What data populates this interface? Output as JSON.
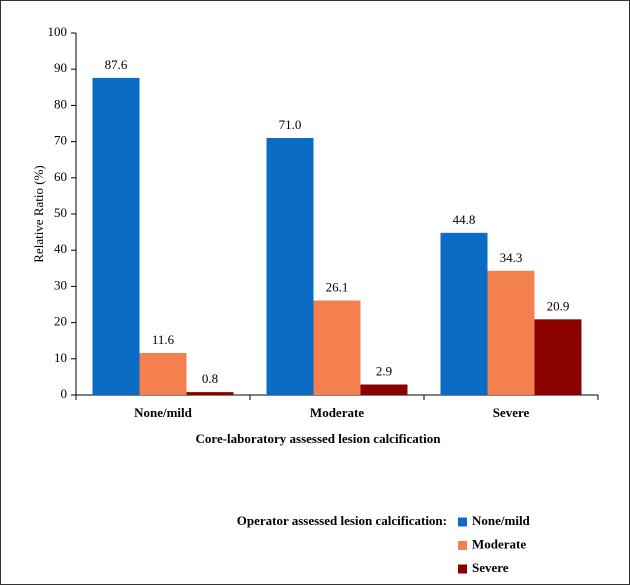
{
  "chart_data": {
    "type": "bar",
    "ylabel": "Relative Ratio (%)",
    "xlabel": "Core-laboratory assessed lesion calcification",
    "legend_title": "Operator assessed lesion calcification:",
    "categories": [
      "None/mild",
      "Moderate",
      "Severe"
    ],
    "series": [
      {
        "name": "None/mild",
        "color": "#0a6cc4",
        "values": [
          87.6,
          71.0,
          44.8
        ],
        "value_labels": [
          "87.6",
          "71.0",
          "44.8"
        ]
      },
      {
        "name": "Moderate",
        "color": "#f4804f",
        "values": [
          11.6,
          26.1,
          34.3
        ],
        "value_labels": [
          "11.6",
          "26.1",
          "34.3"
        ]
      },
      {
        "name": "Severe",
        "color": "#8b0000",
        "values": [
          0.8,
          2.9,
          20.9
        ],
        "value_labels": [
          "0.8",
          "2.9",
          "20.9"
        ]
      }
    ],
    "ylim": [
      0,
      100
    ],
    "yticks": [
      0,
      10,
      20,
      30,
      40,
      50,
      60,
      70,
      80,
      90,
      100
    ],
    "grid": false,
    "legend": "bottom-right"
  }
}
